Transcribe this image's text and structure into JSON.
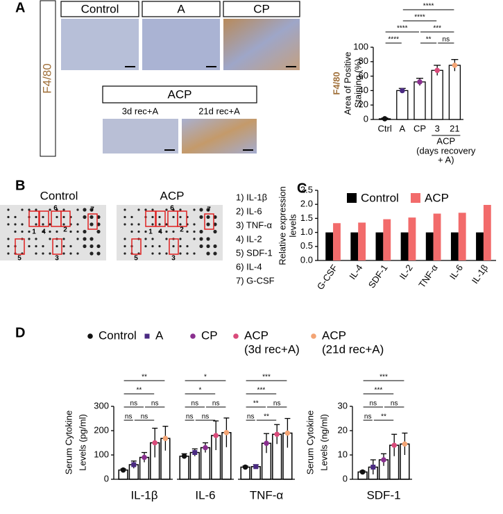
{
  "panel_labels": [
    "A",
    "B",
    "C",
    "D"
  ],
  "panel_a": {
    "marker": "F4/80",
    "images": [
      "Control",
      "A",
      "CP"
    ],
    "group": "ACP",
    "sub_images": [
      "3d rec+A",
      "21d rec+A"
    ]
  },
  "panel_b": {
    "blots": [
      "Control",
      "ACP"
    ],
    "spot_numbers": [
      "1",
      "2",
      "3",
      "4",
      "5",
      "6",
      "7"
    ],
    "key": [
      "1)  IL-1β",
      "2)  IL-6",
      "3)  TNF-α",
      "4)  IL-2",
      "5)  SDF-1",
      "6)  IL-4",
      "7)  G-CSF"
    ]
  },
  "chart_data": [
    {
      "type": "bar",
      "marker_label": "F4/80",
      "y_label": [
        "Area of Positive",
        "Staining (%)"
      ],
      "categories": [
        "Ctrl",
        "A",
        "CP",
        "3",
        "21"
      ],
      "values": [
        1,
        40,
        52,
        68,
        75
      ],
      "errors": [
        1,
        3,
        5,
        7,
        8
      ],
      "bar_color": "#ffffff",
      "edge_color": "#000000",
      "point_colors": [
        "#111111",
        "#4a2a82",
        "#8a2f8f",
        "#d94a7a",
        "#f3a474"
      ],
      "group": {
        "label": "ACP",
        "from": 3,
        "to": 4,
        "note": [
          "(days recovery",
          "+ A)"
        ]
      },
      "ylim": [
        0,
        100
      ],
      "yticks": [
        0,
        20,
        40,
        60,
        80,
        100
      ],
      "brackets": [
        [
          {
            "from": 1,
            "to": 4,
            "label": "****"
          }
        ],
        [
          {
            "from": 1,
            "to": 3,
            "label": "****"
          }
        ],
        [
          {
            "from": 0,
            "to": 2,
            "label": "****"
          },
          {
            "from": 2,
            "to": 4,
            "label": "***"
          }
        ],
        [
          {
            "from": 0,
            "to": 1,
            "label": "****"
          },
          {
            "from": 2,
            "to": 3,
            "label": "**"
          },
          {
            "from": 3,
            "to": 4,
            "label": "ns"
          }
        ]
      ]
    },
    {
      "type": "grouped_bar",
      "y_label": [
        "Relative expression",
        "levels"
      ],
      "categories": [
        "G-CSF",
        "IL-4",
        "SDF-1",
        "IL-2",
        "TNF-α",
        "IL-6",
        "IL-1β"
      ],
      "series": [
        {
          "name": "Control",
          "color": "#000000",
          "values": [
            1,
            1,
            1,
            1,
            1,
            1,
            1
          ]
        },
        {
          "name": "ACP",
          "color": "#f26b6b",
          "values": [
            1.33,
            1.35,
            1.47,
            1.53,
            1.67,
            1.7,
            1.98
          ]
        }
      ],
      "ylim": [
        0,
        2.5
      ],
      "yticks": [
        {
          "value": 0,
          "label": "0.0"
        },
        0.5,
        {
          "value": 1,
          "label": "1.0"
        },
        1.5,
        {
          "value": 2,
          "label": "2.0"
        },
        2.5
      ]
    },
    {
      "type": "dot_bar",
      "y_label": [
        "Serum Cytokine",
        "Levels (pg/ml)"
      ],
      "categories": [
        "IL-1β",
        "IL-6",
        "TNF-α"
      ],
      "series": [
        {
          "name": "Control",
          "color": "#111111",
          "marker": "circle",
          "values": [
            38,
            95,
            50
          ],
          "errors": [
            5,
            10,
            5
          ]
        },
        {
          "name": "A",
          "color": "#4a2a82",
          "marker": "square",
          "values": [
            60,
            110,
            52
          ],
          "errors": [
            15,
            15,
            8
          ]
        },
        {
          "name": "CP",
          "color": "#8a2f8f",
          "marker": "circle",
          "values": [
            90,
            130,
            148
          ],
          "errors": [
            20,
            20,
            40
          ]
        },
        {
          "name": "ACP",
          "note": "(3d rec+A)",
          "color": "#d94a7a",
          "marker": "circle",
          "values": [
            150,
            180,
            185
          ],
          "errors": [
            60,
            60,
            40
          ]
        },
        {
          "name": "ACP",
          "note": "(21d rec+A)",
          "color": "#f3a474",
          "marker": "circle",
          "values": [
            168,
            192,
            190
          ],
          "errors": [
            50,
            60,
            60
          ]
        }
      ],
      "ylim": [
        0,
        300
      ],
      "yticks": [
        0,
        100,
        200,
        300
      ],
      "brackets": [
        [
          [
            {
              "from": 0,
              "to": 4,
              "label": "**"
            }
          ],
          [
            {
              "from": 0,
              "to": 3,
              "label": "**"
            }
          ],
          [
            {
              "from": 0,
              "to": 2,
              "label": "ns"
            },
            {
              "from": 2,
              "to": 4,
              "label": "ns"
            }
          ],
          [
            {
              "from": 0,
              "to": 1,
              "label": "ns"
            },
            {
              "from": 1,
              "to": 3,
              "label": "ns"
            }
          ]
        ],
        [
          [
            {
              "from": 0,
              "to": 4,
              "label": "*"
            }
          ],
          [
            {
              "from": 0,
              "to": 3,
              "label": "*"
            }
          ],
          [
            {
              "from": 0,
              "to": 2,
              "label": "ns"
            },
            {
              "from": 2,
              "to": 4,
              "label": "ns"
            }
          ],
          [
            {
              "from": 0,
              "to": 1,
              "label": "ns"
            },
            {
              "from": 1,
              "to": 3,
              "label": "ns"
            }
          ]
        ],
        [
          [
            {
              "from": 0,
              "to": 4,
              "label": "***"
            }
          ],
          [
            {
              "from": 0,
              "to": 3,
              "label": "***"
            }
          ],
          [
            {
              "from": 0,
              "to": 2,
              "label": "**"
            },
            {
              "from": 2,
              "to": 4,
              "label": "ns"
            }
          ],
          [
            {
              "from": 0,
              "to": 1,
              "label": "ns"
            },
            {
              "from": 1,
              "to": 3,
              "label": "**"
            }
          ]
        ]
      ]
    },
    {
      "type": "dot_bar",
      "y_label": [
        "Serum Cytokine",
        "Levels (ng/ml)"
      ],
      "categories": [
        "SDF-1"
      ],
      "series": [
        {
          "color": "#111111",
          "marker": "circle",
          "values": [
            3
          ],
          "errors": [
            0.5
          ]
        },
        {
          "color": "#4a2a82",
          "marker": "square",
          "values": [
            5
          ],
          "errors": [
            3
          ]
        },
        {
          "color": "#8a2f8f",
          "marker": "circle",
          "values": [
            8
          ],
          "errors": [
            2.5
          ]
        },
        {
          "color": "#d94a7a",
          "marker": "circle",
          "values": [
            14
          ],
          "errors": [
            4.5
          ]
        },
        {
          "color": "#f3a474",
          "marker": "circle",
          "values": [
            14.5
          ],
          "errors": [
            4.5
          ]
        }
      ],
      "ylim": [
        0,
        30
      ],
      "yticks": [
        0,
        10,
        20,
        30
      ],
      "brackets": [
        [
          [
            {
              "from": 0,
              "to": 4,
              "label": "***"
            }
          ],
          [
            {
              "from": 0,
              "to": 3,
              "label": "***"
            }
          ],
          [
            {
              "from": 0,
              "to": 2,
              "label": "ns"
            },
            {
              "from": 2,
              "to": 4,
              "label": "ns"
            }
          ],
          [
            {
              "from": 0,
              "to": 1,
              "label": "ns"
            },
            {
              "from": 1,
              "to": 3,
              "label": "**"
            }
          ]
        ]
      ]
    }
  ]
}
